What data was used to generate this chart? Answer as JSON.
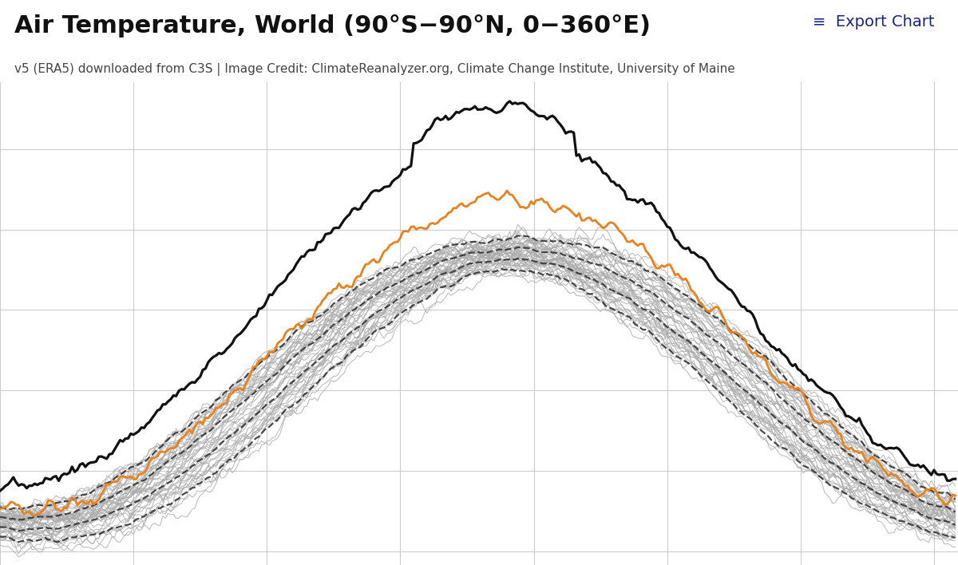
{
  "title": "Air Temperature, World (90°S−90°N, 0−360°E)",
  "subtitle": "v5 (ERA5) downloaded from C3S | Image Credit: ClimateReanalyzer.org, Climate Change Institute, University of Maine",
  "export_text": "≡  Export Chart",
  "title_fontsize": 22,
  "subtitle_fontsize": 11,
  "background_color": "#ffffff",
  "grid_color": "#cccccc",
  "num_days": 365,
  "num_historical_years": 44,
  "historical_color": "#aaaaaa",
  "historical_linewidth": 0.7,
  "dashed_color": "#333333",
  "dashed_linewidth": 1.6,
  "orange_color": "#e8821e",
  "orange_linewidth": 2.0,
  "black_color": "#111111",
  "black_linewidth": 2.3,
  "title_color": "#111111",
  "export_color": "#1a237e"
}
